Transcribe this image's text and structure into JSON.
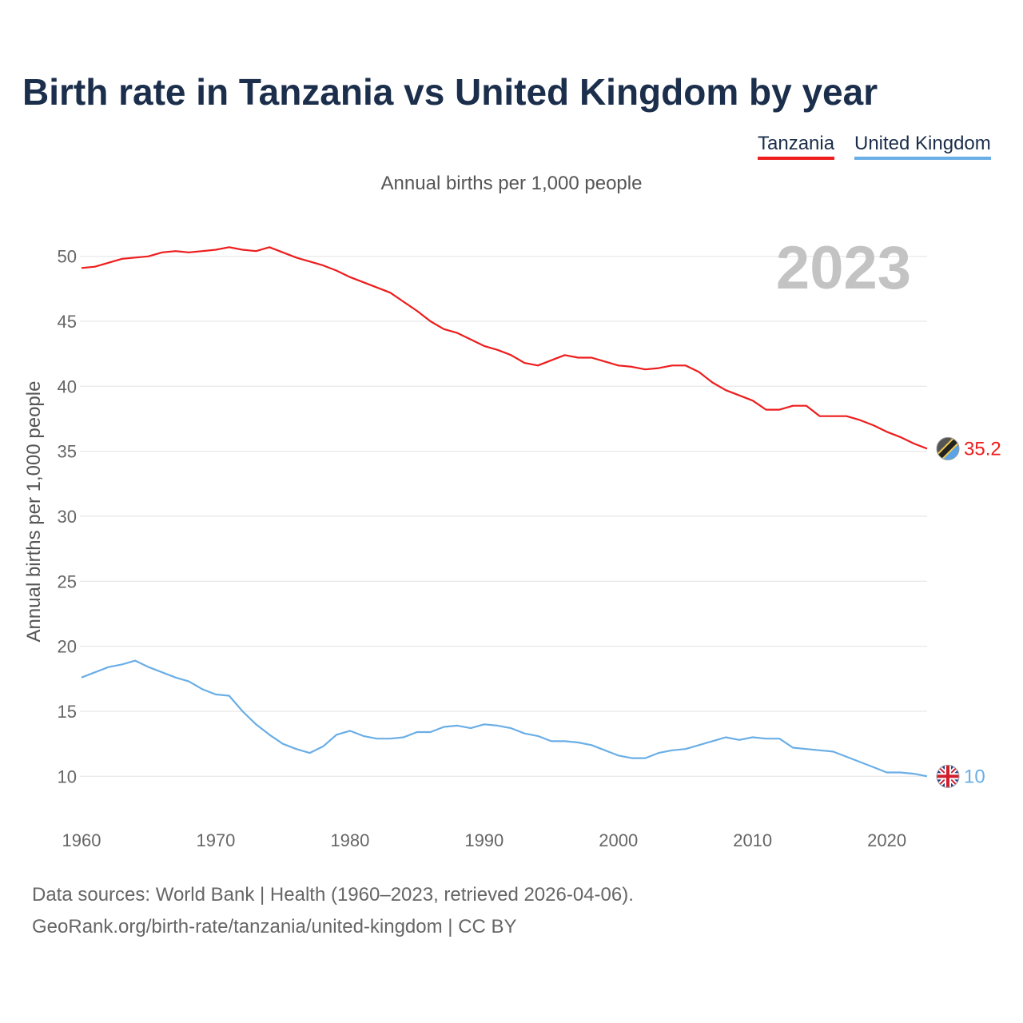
{
  "title": "Birth rate in Tanzania vs United Kingdom by year",
  "subtitle": "Annual births per 1,000 people",
  "footer": {
    "line1": "Data sources: World Bank | Health (1960–2023, retrieved 2026-04-06).",
    "line2": "GeoRank.org/birth-rate/tanzania/united-kingdom | CC BY"
  },
  "colors": {
    "tanzania": "#ee1c1c",
    "united_kingdom": "#6aaee6",
    "grid": "#e6e6e6"
  },
  "chart_data": {
    "type": "line",
    "title": "Birth rate in Tanzania vs United Kingdom by year",
    "ylabel": "Annual births per 1,000 people",
    "xlabel": "",
    "year_label": "2023",
    "xlim": [
      1960,
      2023
    ],
    "ylim": [
      7.5,
      52.5
    ],
    "x_ticks": [
      1960,
      1970,
      1980,
      1990,
      2000,
      2010,
      2020
    ],
    "y_ticks": [
      10,
      15,
      20,
      25,
      30,
      35,
      40,
      45,
      50
    ],
    "grid": true,
    "legend_position": "top-right",
    "x": [
      1960,
      1961,
      1962,
      1963,
      1964,
      1965,
      1966,
      1967,
      1968,
      1969,
      1970,
      1971,
      1972,
      1973,
      1974,
      1975,
      1976,
      1977,
      1978,
      1979,
      1980,
      1981,
      1982,
      1983,
      1984,
      1985,
      1986,
      1987,
      1988,
      1989,
      1990,
      1991,
      1992,
      1993,
      1994,
      1995,
      1996,
      1997,
      1998,
      1999,
      2000,
      2001,
      2002,
      2003,
      2004,
      2005,
      2006,
      2007,
      2008,
      2009,
      2010,
      2011,
      2012,
      2013,
      2014,
      2015,
      2016,
      2017,
      2018,
      2019,
      2020,
      2021,
      2022,
      2023
    ],
    "series": [
      {
        "name": "Tanzania",
        "color": "#ee1c1c",
        "end_label": "35.2",
        "values": [
          49.1,
          49.2,
          49.5,
          49.8,
          49.9,
          50.0,
          50.3,
          50.4,
          50.3,
          50.4,
          50.5,
          50.7,
          50.5,
          50.4,
          50.7,
          50.3,
          49.9,
          49.6,
          49.3,
          48.9,
          48.4,
          48.0,
          47.6,
          47.2,
          46.5,
          45.8,
          45.0,
          44.4,
          44.1,
          43.6,
          43.1,
          42.8,
          42.4,
          41.8,
          41.6,
          42.0,
          42.4,
          42.2,
          42.2,
          41.9,
          41.6,
          41.5,
          41.3,
          41.4,
          41.6,
          41.6,
          41.1,
          40.3,
          39.7,
          39.3,
          38.9,
          38.2,
          38.2,
          38.5,
          38.5,
          37.7,
          37.7,
          37.7,
          37.4,
          37.0,
          36.5,
          36.1,
          35.6,
          35.2
        ]
      },
      {
        "name": "United Kingdom",
        "color": "#6aaee6",
        "end_label": "10",
        "values": [
          17.6,
          18.0,
          18.4,
          18.6,
          18.9,
          18.4,
          18.0,
          17.6,
          17.3,
          16.7,
          16.3,
          16.2,
          15.0,
          14.0,
          13.2,
          12.5,
          12.1,
          11.8,
          12.3,
          13.2,
          13.5,
          13.1,
          12.9,
          12.9,
          13.0,
          13.4,
          13.4,
          13.8,
          13.9,
          13.7,
          14.0,
          13.9,
          13.7,
          13.3,
          13.1,
          12.7,
          12.7,
          12.6,
          12.4,
          12.0,
          11.6,
          11.4,
          11.4,
          11.8,
          12.0,
          12.1,
          12.4,
          12.7,
          13.0,
          12.8,
          13.0,
          12.9,
          12.9,
          12.2,
          12.1,
          12.0,
          11.9,
          11.5,
          11.1,
          10.7,
          10.3,
          10.3,
          10.2,
          10.0
        ]
      }
    ]
  }
}
